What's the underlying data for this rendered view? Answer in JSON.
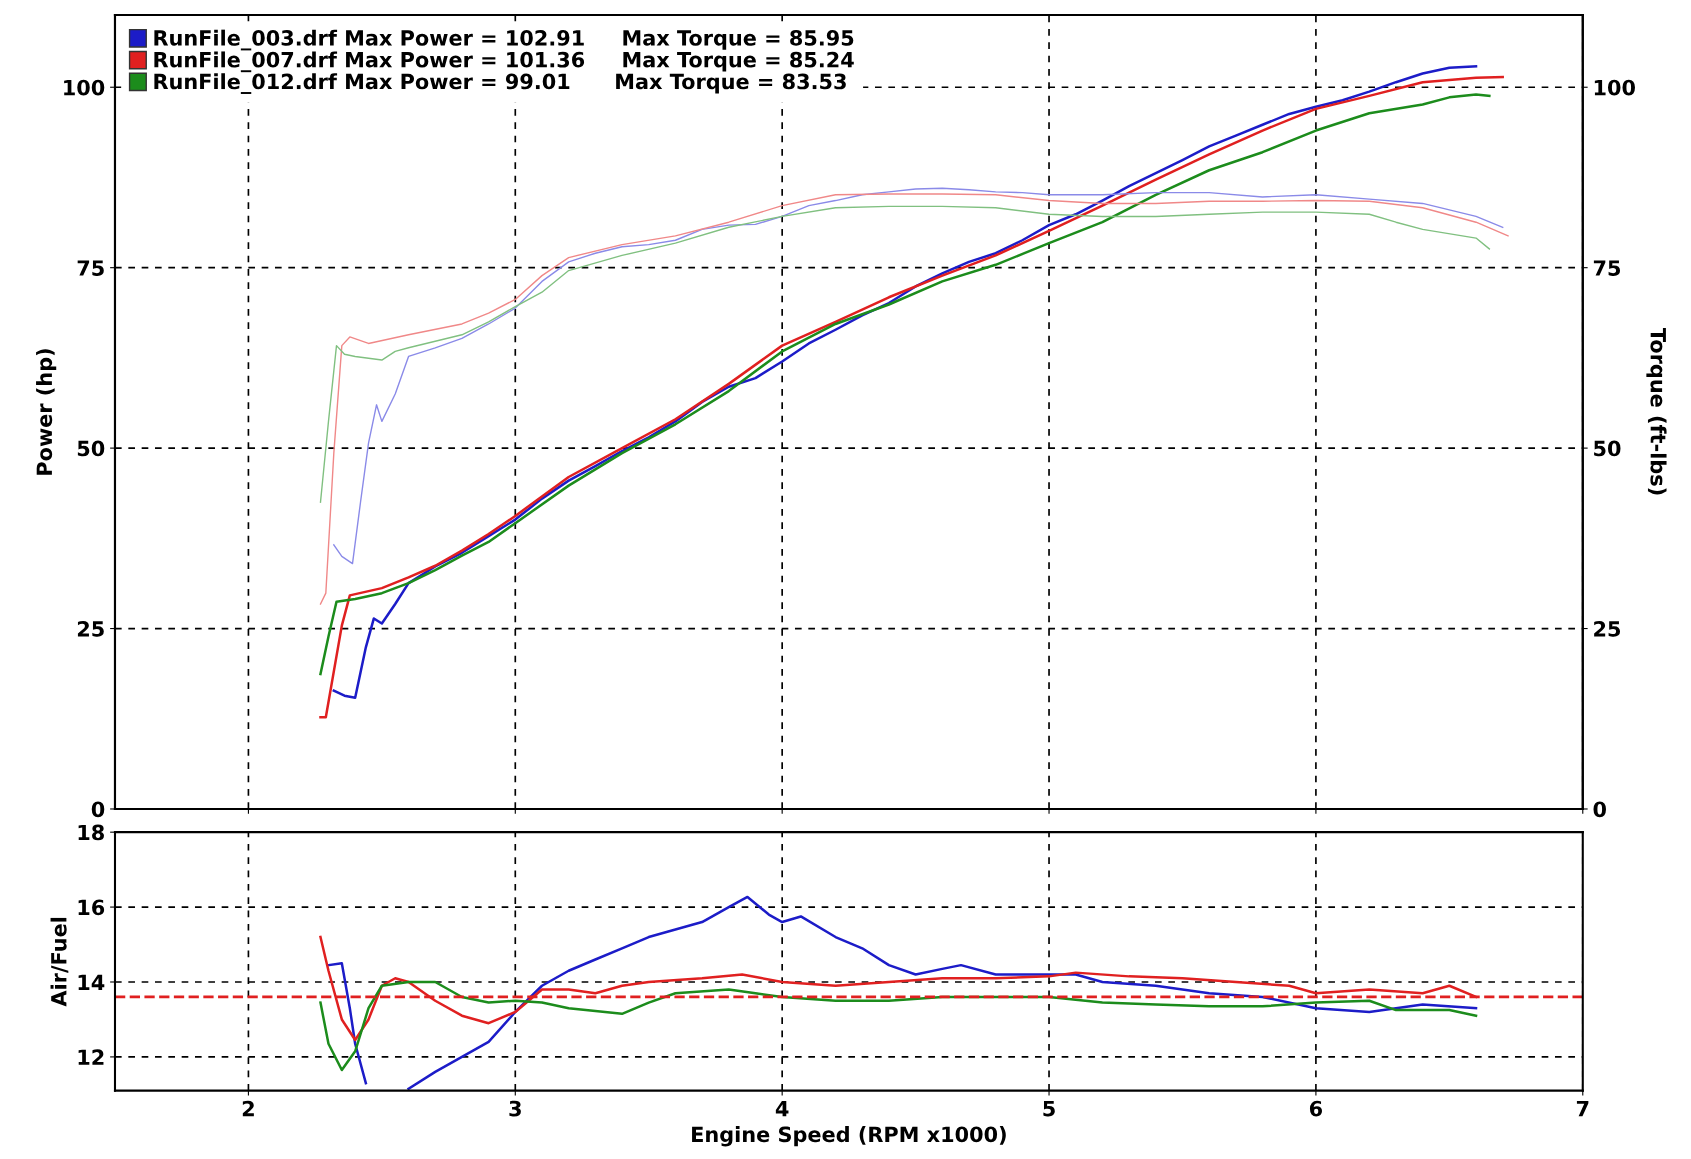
{
  "chart_data": [
    {
      "type": "line",
      "ylabel": "Power (hp)",
      "y2label": "Torque (ft-lbs)",
      "xlim": [
        1.5,
        7
      ],
      "xticks": [
        2,
        3,
        4,
        5,
        6,
        7
      ],
      "ylim": [
        0,
        110
      ],
      "yticks": [
        0,
        25,
        50,
        75,
        100
      ],
      "y2lim": [
        0,
        110
      ],
      "y2ticks": [
        0,
        25,
        50,
        75,
        100
      ],
      "tick_labels": "y",
      "grid": true,
      "legend": "top left",
      "marker": "none",
      "line_style": "solid",
      "series": [
        {
          "name": "RunFile_003.drf Max Power = 102.91     Max Torque = 85.95",
          "color": "#1c1cc8",
          "x": [
            2.32,
            2.36,
            2.4,
            2.44,
            2.47,
            2.5,
            2.55,
            2.6,
            2.7,
            2.8,
            2.9,
            3.0,
            3.1,
            3.2,
            3.3,
            3.4,
            3.5,
            3.6,
            3.7,
            3.8,
            3.9,
            4.0,
            4.1,
            4.2,
            4.3,
            4.4,
            4.5,
            4.6,
            4.7,
            4.8,
            4.9,
            5.0,
            5.1,
            5.2,
            5.3,
            5.4,
            5.5,
            5.6,
            5.7,
            5.8,
            5.9,
            6.0,
            6.1,
            6.2,
            6.3,
            6.4,
            6.5,
            6.6
          ],
          "values": [
            16.4,
            15.7,
            15.4,
            22.4,
            26.4,
            25.7,
            28.4,
            31.3,
            33.6,
            35.5,
            37.8,
            40.1,
            43,
            45.5,
            47.5,
            49.6,
            51.5,
            53.7,
            56.4,
            58.5,
            59.7,
            62,
            64.5,
            66.4,
            68.4,
            70.1,
            72.4,
            74.2,
            75.8,
            77,
            78.8,
            80.9,
            82.4,
            84.3,
            86.3,
            88.1,
            89.9,
            91.8,
            93.3,
            94.8,
            96.3,
            97.3,
            98.2,
            99.4,
            100.7,
            101.9,
            102.7,
            102.9
          ]
        },
        {
          "name": "RunFile_007.drf Max Power = 101.36     Max Torque = 85.24",
          "color": "#e02020",
          "x": [
            2.27,
            2.29,
            2.35,
            2.38,
            2.5,
            2.6,
            2.7,
            2.8,
            2.9,
            3.0,
            3.2,
            3.4,
            3.6,
            3.8,
            4.0,
            4.2,
            4.4,
            4.6,
            4.8,
            5.0,
            5.2,
            5.4,
            5.6,
            5.8,
            6.0,
            6.2,
            6.4,
            6.6,
            6.7
          ],
          "values": [
            12.7,
            12.7,
            25.4,
            29.6,
            30.6,
            32.1,
            33.7,
            35.8,
            38.1,
            40.6,
            46,
            50,
            54,
            58.9,
            64.2,
            67.5,
            70.9,
            73.9,
            76.7,
            80.1,
            83.6,
            87.2,
            90.7,
            94,
            97,
            98.8,
            100.7,
            101.3,
            101.4
          ]
        },
        {
          "name": "RunFile_012.drf Max Power = 99.01      Max Torque = 83.53",
          "color": "#1c8c1c",
          "x": [
            2.27,
            2.3,
            2.33,
            2.4,
            2.5,
            2.6,
            2.7,
            2.8,
            2.9,
            3.0,
            3.2,
            3.4,
            3.6,
            3.8,
            4.0,
            4.2,
            4.4,
            4.6,
            4.8,
            5.0,
            5.2,
            5.4,
            5.6,
            5.8,
            6.0,
            6.2,
            6.4,
            6.5,
            6.6,
            6.65
          ],
          "values": [
            18.7,
            23.9,
            28.7,
            29.1,
            29.9,
            31.3,
            33.1,
            35.1,
            37,
            39.6,
            44.8,
            49.3,
            53.3,
            57.9,
            63.4,
            67.2,
            69.9,
            73.1,
            75.4,
            78.4,
            81.3,
            85.1,
            88.5,
            91,
            94,
            96.4,
            97.6,
            98.6,
            99.0,
            98.8
          ]
        },
        {
          "color": "#8a8ae8",
          "axis": "y2",
          "x": [
            2.32,
            2.35,
            2.39,
            2.42,
            2.45,
            2.48,
            2.5,
            2.55,
            2.6,
            2.7,
            2.8,
            2.9,
            3.0,
            3.1,
            3.2,
            3.3,
            3.4,
            3.5,
            3.6,
            3.7,
            3.8,
            3.9,
            4.0,
            4.1,
            4.2,
            4.3,
            4.4,
            4.5,
            4.6,
            4.7,
            4.8,
            4.9,
            5.0,
            5.2,
            5.4,
            5.6,
            5.8,
            6.0,
            6.2,
            6.4,
            6.6,
            6.7
          ],
          "values": [
            36.6,
            35,
            34,
            42.5,
            50.7,
            56,
            53.7,
            57.5,
            62.7,
            63.9,
            65.2,
            67.2,
            69.4,
            73.1,
            75.8,
            77,
            77.9,
            78.2,
            78.8,
            80.3,
            80.9,
            81,
            82.1,
            83.6,
            84.3,
            85.1,
            85.5,
            85.9,
            86.0,
            85.8,
            85.5,
            85.4,
            85.1,
            85.1,
            85.4,
            85.4,
            84.8,
            85.1,
            84.5,
            83.9,
            82.1,
            80.6
          ]
        },
        {
          "color": "#f08888",
          "axis": "y2",
          "x": [
            2.27,
            2.29,
            2.32,
            2.35,
            2.38,
            2.45,
            2.6,
            2.8,
            2.9,
            3.0,
            3.1,
            3.2,
            3.4,
            3.6,
            3.8,
            4.0,
            4.2,
            4.4,
            4.6,
            4.8,
            5.0,
            5.2,
            5.4,
            5.6,
            5.8,
            6.0,
            6.2,
            6.4,
            6.6,
            6.72
          ],
          "values": [
            28.4,
            29.9,
            49.3,
            64.2,
            65.4,
            64.5,
            65.7,
            67.2,
            68.7,
            70.6,
            73.9,
            76.4,
            78.2,
            79.4,
            81.3,
            83.6,
            85.1,
            85.2,
            85.2,
            85.1,
            84.3,
            83.9,
            83.9,
            84.2,
            84.2,
            84.3,
            84.2,
            83.3,
            81.3,
            79.4
          ]
        },
        {
          "color": "#80c080",
          "axis": "y2",
          "x": [
            2.27,
            2.3,
            2.33,
            2.36,
            2.4,
            2.5,
            2.55,
            2.6,
            2.8,
            2.9,
            3.0,
            3.1,
            3.2,
            3.4,
            3.6,
            3.8,
            4.0,
            4.2,
            4.4,
            4.6,
            4.8,
            5.0,
            5.2,
            5.4,
            5.6,
            5.8,
            6.0,
            6.2,
            6.3,
            6.4,
            6.6,
            6.65
          ],
          "values": [
            42.5,
            53.7,
            64.2,
            63,
            62.7,
            62.2,
            63.4,
            63.9,
            65.7,
            67.5,
            69.6,
            71.6,
            74.6,
            76.7,
            78.4,
            80.6,
            82.1,
            83.3,
            83.5,
            83.5,
            83.3,
            82.4,
            82.1,
            82.1,
            82.4,
            82.7,
            82.7,
            82.4,
            81.3,
            80.3,
            79.1,
            77.6
          ]
        }
      ]
    },
    {
      "type": "line",
      "ylabel": "Air/Fuel",
      "xlabel": "Engine Speed (RPM x1000)",
      "xlim": [
        1.5,
        7
      ],
      "xticks": [
        2,
        3,
        4,
        5,
        6,
        7
      ],
      "ylim": [
        11.1,
        18
      ],
      "yticks": [
        12,
        14,
        16,
        18
      ],
      "grid": true,
      "marker": "none",
      "line_style": "solid",
      "ref_lines": [
        {
          "axis": "y",
          "value": 13.6,
          "color": "#e02020",
          "line_style": "dashed"
        }
      ],
      "series": [
        {
          "color": "#1c1cc8",
          "x": [
            2.3,
            2.35,
            2.38,
            2.4,
            2.44,
            2.5,
            2.6,
            2.7,
            2.8,
            2.9,
            3.0,
            3.1,
            3.2,
            3.3,
            3.4,
            3.5,
            3.6,
            3.7,
            3.8,
            3.87,
            3.95,
            4.0,
            4.07,
            4.2,
            4.3,
            4.4,
            4.5,
            4.6,
            4.67,
            4.8,
            5.0,
            5.1,
            5.2,
            5.4,
            5.6,
            5.8,
            6.0,
            6.2,
            6.4,
            6.6
          ],
          "values": [
            14.45,
            14.5,
            13.3,
            12.35,
            11.3,
            null,
            11.15,
            11.6,
            12,
            12.4,
            13.2,
            13.9,
            14.3,
            14.6,
            14.9,
            15.2,
            15.4,
            15.6,
            16.0,
            16.27,
            15.8,
            15.6,
            15.75,
            15.2,
            14.9,
            14.45,
            14.2,
            14.35,
            14.45,
            14.2,
            14.2,
            14.2,
            14.0,
            13.9,
            13.7,
            13.6,
            13.3,
            13.2,
            13.4,
            13.3
          ]
        },
        {
          "color": "#e02020",
          "x": [
            2.27,
            2.3,
            2.35,
            2.4,
            2.45,
            2.5,
            2.55,
            2.6,
            2.7,
            2.8,
            2.9,
            3.0,
            3.1,
            3.2,
            3.3,
            3.4,
            3.5,
            3.7,
            3.85,
            4.0,
            4.2,
            4.4,
            4.6,
            4.8,
            5.0,
            5.1,
            5.3,
            5.5,
            5.7,
            5.9,
            6.0,
            6.2,
            6.4,
            6.5,
            6.6
          ],
          "values": [
            15.2,
            14.3,
            13.0,
            12.45,
            13.0,
            13.9,
            14.1,
            14.0,
            13.5,
            13.1,
            12.9,
            13.2,
            13.8,
            13.8,
            13.7,
            13.9,
            14.0,
            14.1,
            14.2,
            14.0,
            13.9,
            14.0,
            14.1,
            14.1,
            14.15,
            14.25,
            14.15,
            14.1,
            14.0,
            13.9,
            13.7,
            13.8,
            13.7,
            13.9,
            13.6
          ]
        },
        {
          "color": "#1c8c1c",
          "x": [
            2.27,
            2.3,
            2.35,
            2.4,
            2.45,
            2.5,
            2.6,
            2.7,
            2.8,
            2.9,
            3.0,
            3.1,
            3.2,
            3.4,
            3.5,
            3.6,
            3.8,
            3.9,
            4.0,
            4.2,
            4.4,
            4.6,
            4.8,
            5.0,
            5.2,
            5.4,
            5.6,
            5.8,
            6.0,
            6.2,
            6.3,
            6.4,
            6.5,
            6.6
          ],
          "values": [
            13.45,
            12.35,
            11.65,
            12.15,
            13.3,
            13.9,
            14.0,
            14.0,
            13.6,
            13.45,
            13.5,
            13.45,
            13.3,
            13.15,
            13.45,
            13.7,
            13.8,
            13.7,
            13.6,
            13.5,
            13.5,
            13.6,
            13.6,
            13.6,
            13.45,
            13.4,
            13.35,
            13.35,
            13.45,
            13.5,
            13.25,
            13.25,
            13.25,
            13.1
          ]
        }
      ]
    }
  ]
}
